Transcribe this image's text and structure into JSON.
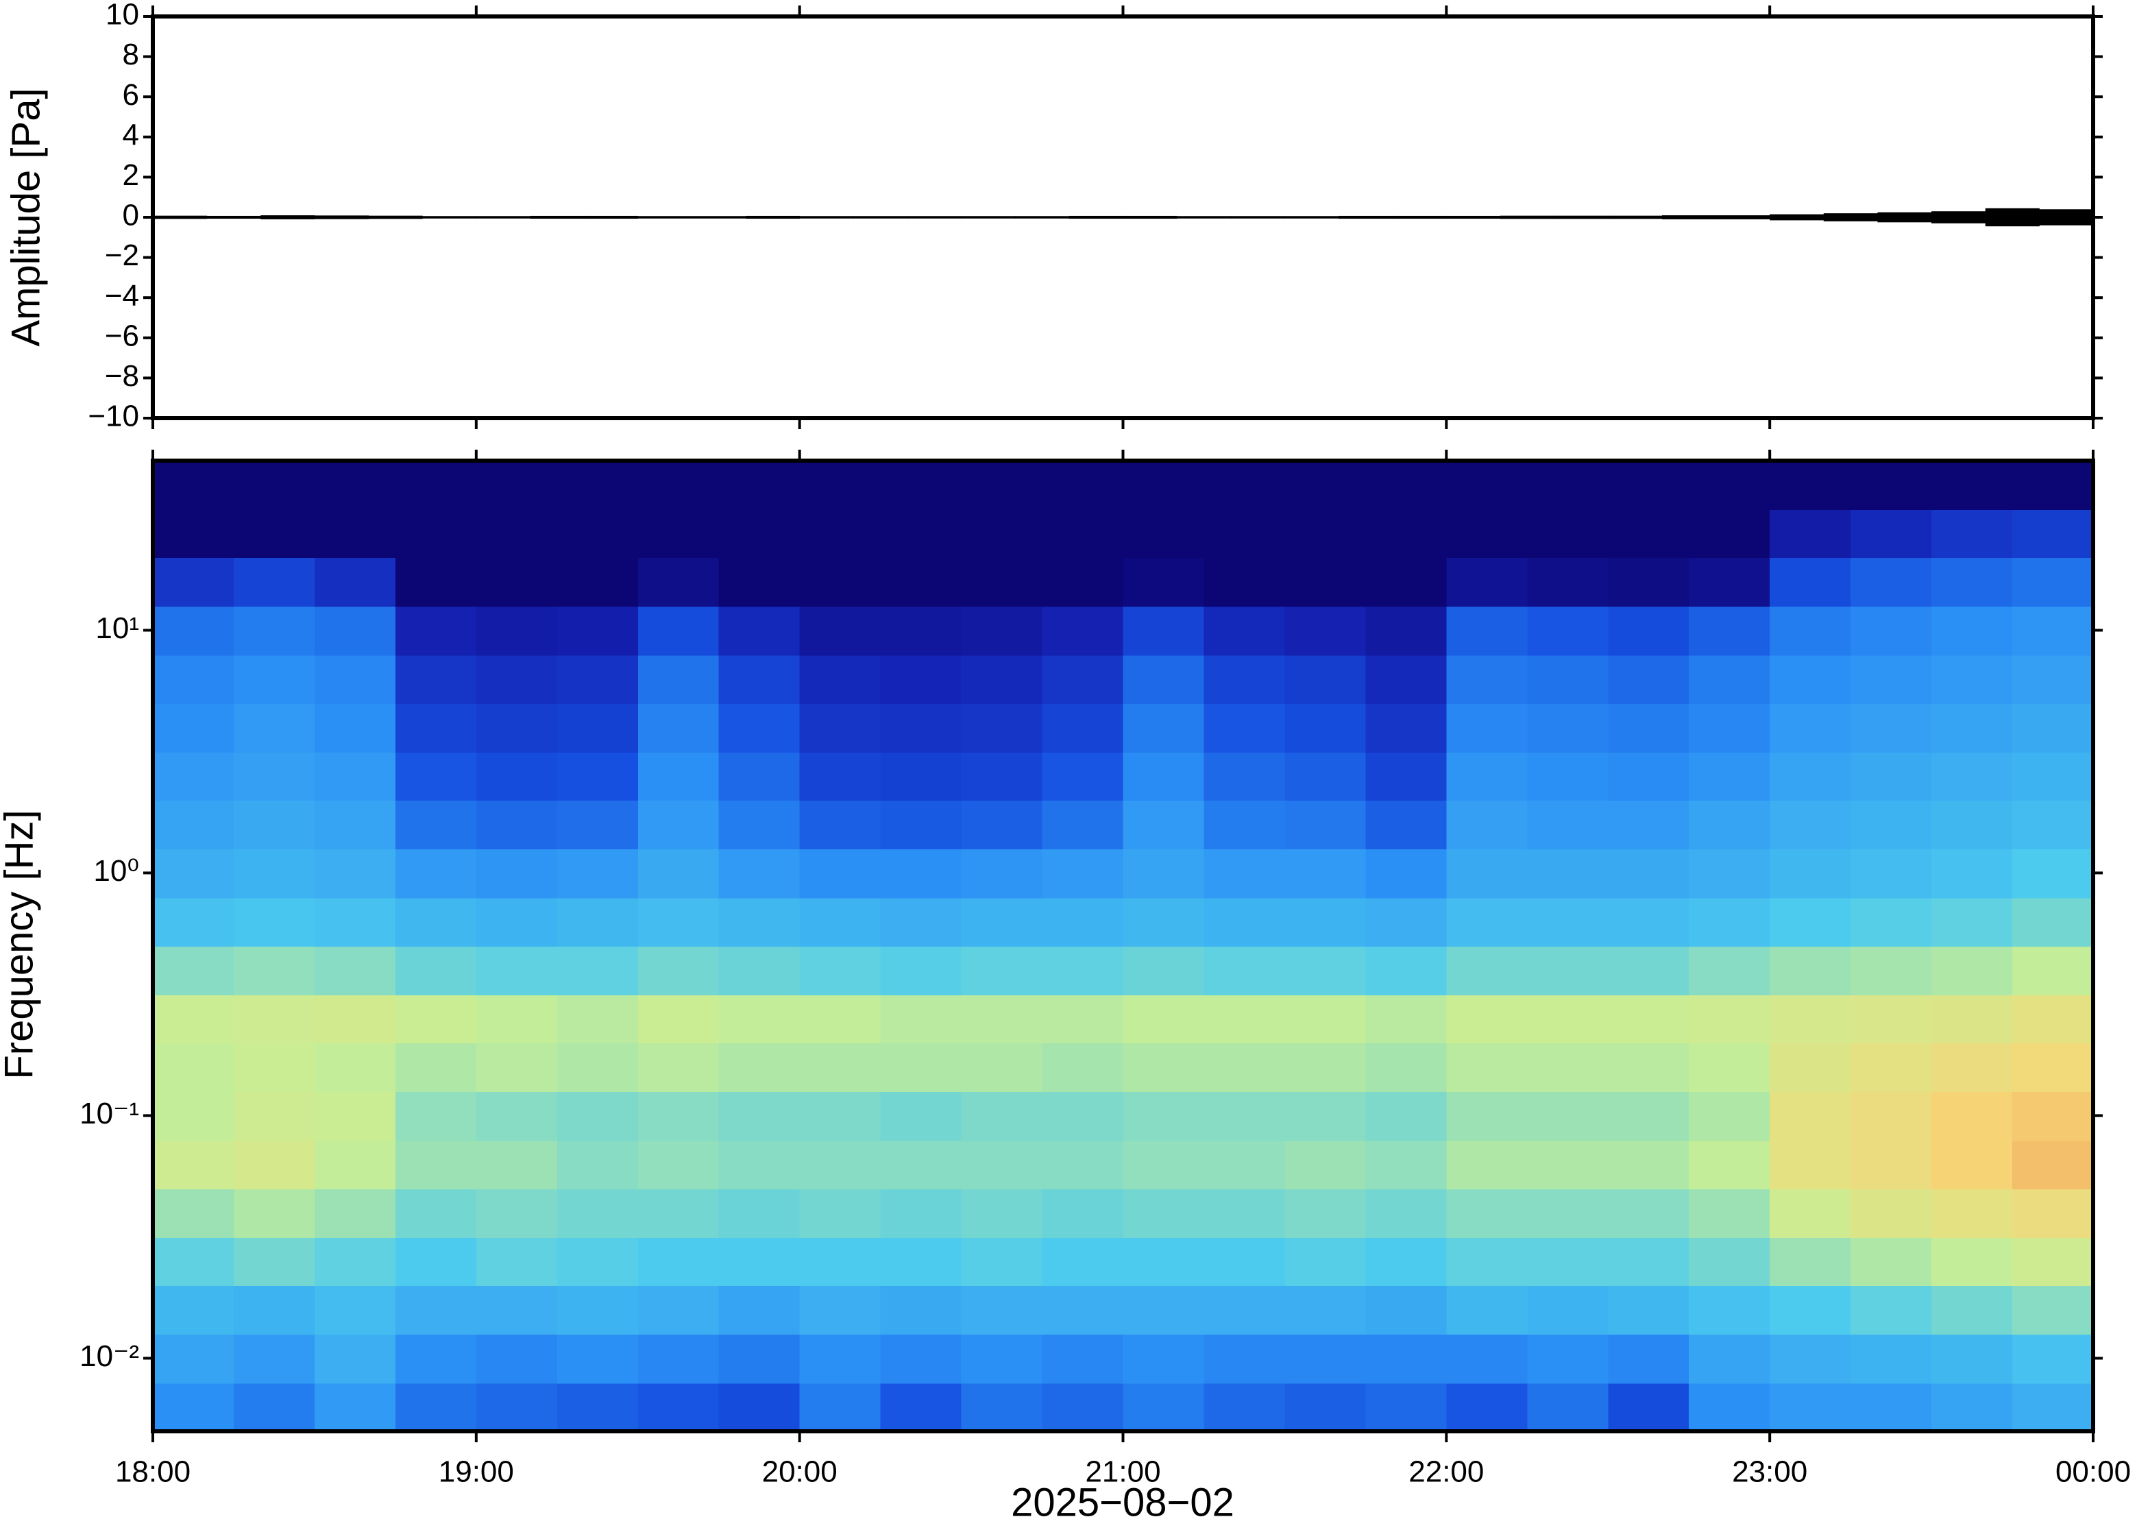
{
  "chart_data": [
    {
      "type": "band",
      "ylabel": "Amplitude [Pa]",
      "color": "#000000",
      "ylim": [
        -10,
        10
      ],
      "yticks": [
        {
          "value": -10,
          "label": "−10"
        },
        {
          "value": -8,
          "label": "−8"
        },
        {
          "value": -6,
          "label": "−6"
        },
        {
          "value": -4,
          "label": "−4"
        },
        {
          "value": -2,
          "label": "−2"
        },
        0,
        2,
        4,
        6,
        8,
        10
      ],
      "values": [
        0.08,
        0.07,
        0.1,
        0.09,
        0.08,
        0.06,
        0.06,
        0.07,
        0.07,
        0.06,
        0.06,
        0.07,
        0.06,
        0.06,
        0.06,
        0.06,
        0.06,
        0.07,
        0.07,
        0.06,
        0.06,
        0.06,
        0.07,
        0.07,
        0.07,
        0.08,
        0.08,
        0.08,
        0.1,
        0.1,
        0.15,
        0.2,
        0.25,
        0.3,
        0.45,
        0.4
      ]
    },
    {
      "type": "heatmap",
      "ylabel": "Frequency [Hz]",
      "xlabel": "2025−08−02",
      "log_y": true,
      "xticks": [
        "18:00",
        "19:00",
        "20:00",
        "21:00",
        "22:00",
        "23:00",
        "00:00"
      ],
      "ylim": [
        0.005,
        50
      ],
      "yticks": [
        {
          "value": 0.01,
          "label": "10⁻²"
        },
        {
          "value": 0.1,
          "label": "10⁻¹"
        },
        {
          "value": 1,
          "label": "10⁰"
        },
        {
          "value": 10,
          "label": "10¹"
        }
      ],
      "y_bins": [
        0.005,
        0.0079,
        0.0126,
        0.02,
        0.0315,
        0.05,
        0.079,
        0.126,
        0.2,
        0.315,
        0.5,
        0.79,
        1.26,
        2,
        3.15,
        5,
        7.9,
        12.6,
        20,
        31.5,
        50
      ],
      "clim": [
        0,
        100
      ],
      "colormap": [
        "#0c0675",
        "#1422b4",
        "#1650e0",
        "#2a8ef5",
        "#4ccbee",
        "#c8ee94",
        "#f6d878",
        "#f09a58",
        "#d84030"
      ],
      "z": [
        [
          38,
          42,
          46,
          52,
          58,
          64,
          62,
          62,
          63,
          56,
          48,
          44,
          42,
          40,
          38,
          36,
          32,
          18,
          0,
          0
        ],
        [
          34,
          40,
          45,
          54,
          60,
          66,
          64,
          63,
          64,
          57,
          49,
          45,
          43,
          41,
          40,
          38,
          34,
          22,
          0,
          0
        ],
        [
          40,
          44,
          47,
          52,
          58,
          62,
          63,
          62,
          65,
          56,
          48,
          44,
          42,
          40,
          38,
          36,
          32,
          16,
          0,
          0
        ],
        [
          32,
          38,
          44,
          50,
          54,
          58,
          57,
          60,
          63,
          53,
          46,
          40,
          32,
          26,
          22,
          18,
          12,
          0,
          0,
          0
        ],
        [
          30,
          36,
          44,
          52,
          55,
          58,
          56,
          61,
          62,
          52,
          45,
          39,
          30,
          24,
          20,
          16,
          10,
          0,
          0,
          0
        ],
        [
          28,
          38,
          45,
          51,
          54,
          56,
          55,
          60,
          61,
          52,
          46,
          40,
          31,
          25,
          21,
          17,
          11,
          0,
          0,
          0
        ],
        [
          26,
          36,
          44,
          50,
          54,
          57,
          56,
          61,
          63,
          54,
          47,
          43,
          40,
          38,
          35,
          32,
          24,
          4,
          0,
          0
        ],
        [
          24,
          34,
          42,
          50,
          53,
          56,
          55,
          60,
          62,
          53,
          46,
          40,
          34,
          30,
          26,
          22,
          14,
          0,
          0,
          0
        ],
        [
          34,
          38,
          44,
          50,
          54,
          56,
          55,
          60,
          62,
          52,
          45,
          38,
          28,
          22,
          18,
          14,
          8,
          0,
          0,
          0
        ],
        [
          26,
          36,
          43,
          50,
          53,
          56,
          54,
          60,
          61,
          51,
          44,
          38,
          27,
          21,
          17,
          13,
          8,
          0,
          0,
          0
        ],
        [
          32,
          38,
          44,
          51,
          54,
          56,
          55,
          60,
          61,
          52,
          45,
          39,
          28,
          22,
          18,
          14,
          9,
          0,
          0,
          0
        ],
        [
          30,
          36,
          44,
          50,
          53,
          56,
          55,
          59,
          61,
          52,
          45,
          40,
          32,
          26,
          22,
          18,
          12,
          0,
          0,
          0
        ],
        [
          34,
          38,
          44,
          50,
          54,
          57,
          56,
          60,
          62,
          53,
          46,
          42,
          40,
          37,
          34,
          30,
          22,
          2,
          0,
          0
        ],
        [
          30,
          36,
          44,
          50,
          54,
          57,
          56,
          60,
          62,
          52,
          45,
          40,
          34,
          30,
          26,
          22,
          14,
          0,
          0,
          0
        ],
        [
          28,
          36,
          44,
          51,
          55,
          58,
          56,
          60,
          62,
          52,
          45,
          40,
          33,
          28,
          24,
          20,
          12,
          0,
          0,
          0
        ],
        [
          30,
          36,
          43,
          50,
          54,
          57,
          55,
          59,
          61,
          51,
          44,
          38,
          28,
          22,
          18,
          14,
          9,
          0,
          0,
          0
        ],
        [
          26,
          36,
          46,
          52,
          56,
          60,
          58,
          61,
          63,
          54,
          47,
          43,
          41,
          39,
          36,
          33,
          28,
          6,
          0,
          0
        ],
        [
          32,
          38,
          45,
          52,
          56,
          60,
          58,
          61,
          63,
          54,
          47,
          43,
          40,
          38,
          35,
          32,
          26,
          4,
          0,
          0
        ],
        [
          24,
          36,
          46,
          52,
          56,
          60,
          58,
          61,
          63,
          54,
          47,
          43,
          40,
          37,
          34,
          30,
          24,
          3,
          0,
          0
        ],
        [
          38,
          42,
          48,
          54,
          58,
          62,
          60,
          62,
          64,
          56,
          48,
          44,
          42,
          39,
          36,
          34,
          28,
          5,
          0,
          0
        ],
        [
          40,
          44,
          50,
          58,
          64,
          70,
          70,
          68,
          66,
          58,
          50,
          46,
          44,
          42,
          40,
          38,
          34,
          24,
          10,
          0
        ],
        [
          40,
          45,
          52,
          60,
          68,
          72,
          72,
          70,
          67,
          59,
          51,
          47,
          45,
          43,
          41,
          39,
          36,
          28,
          14,
          0
        ],
        [
          42,
          46,
          54,
          62,
          70,
          76,
          76,
          72,
          68,
          60,
          52,
          48,
          46,
          44,
          42,
          40,
          38,
          30,
          18,
          0
        ],
        [
          44,
          48,
          56,
          64,
          72,
          80,
          78,
          74,
          70,
          62,
          54,
          50,
          47,
          45,
          43,
          41,
          39,
          32,
          20,
          0
        ]
      ]
    }
  ]
}
